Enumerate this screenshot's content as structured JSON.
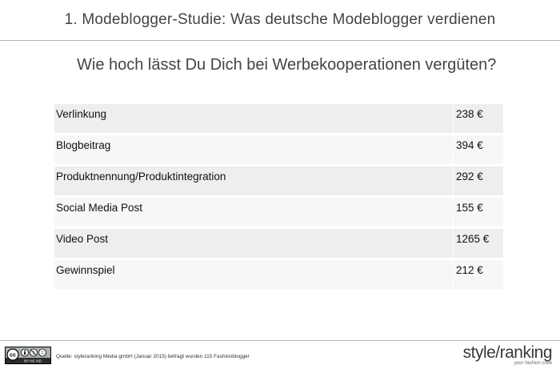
{
  "header": {
    "title": "1. Modeblogger-Studie: Was deutsche Modeblogger verdienen"
  },
  "question": "Wie hoch lässt Du Dich bei Werbekooperationen vergüten?",
  "table": {
    "rows": [
      {
        "label": "Verlinkung",
        "value": "238 €"
      },
      {
        "label": "Blogbeitrag",
        "value": "394 €"
      },
      {
        "label": "Produktnennung/Produktintegration",
        "value": "292 €"
      },
      {
        "label": "Social Media Post",
        "value": "155 €"
      },
      {
        "label": "Video Post",
        "value": "1265 €"
      },
      {
        "label": "Gewinnspiel",
        "value": "212 €"
      }
    ]
  },
  "footer": {
    "license_icon": "cc-by-nc-nd-icon",
    "license_text": "BY NC ND",
    "source": "Quelle: styleranking Media gmbH (Januar 2015) befragt wurden 115 Fashionblogger",
    "logo_text": "style/ranking",
    "logo_tagline": "your fashion crew"
  }
}
